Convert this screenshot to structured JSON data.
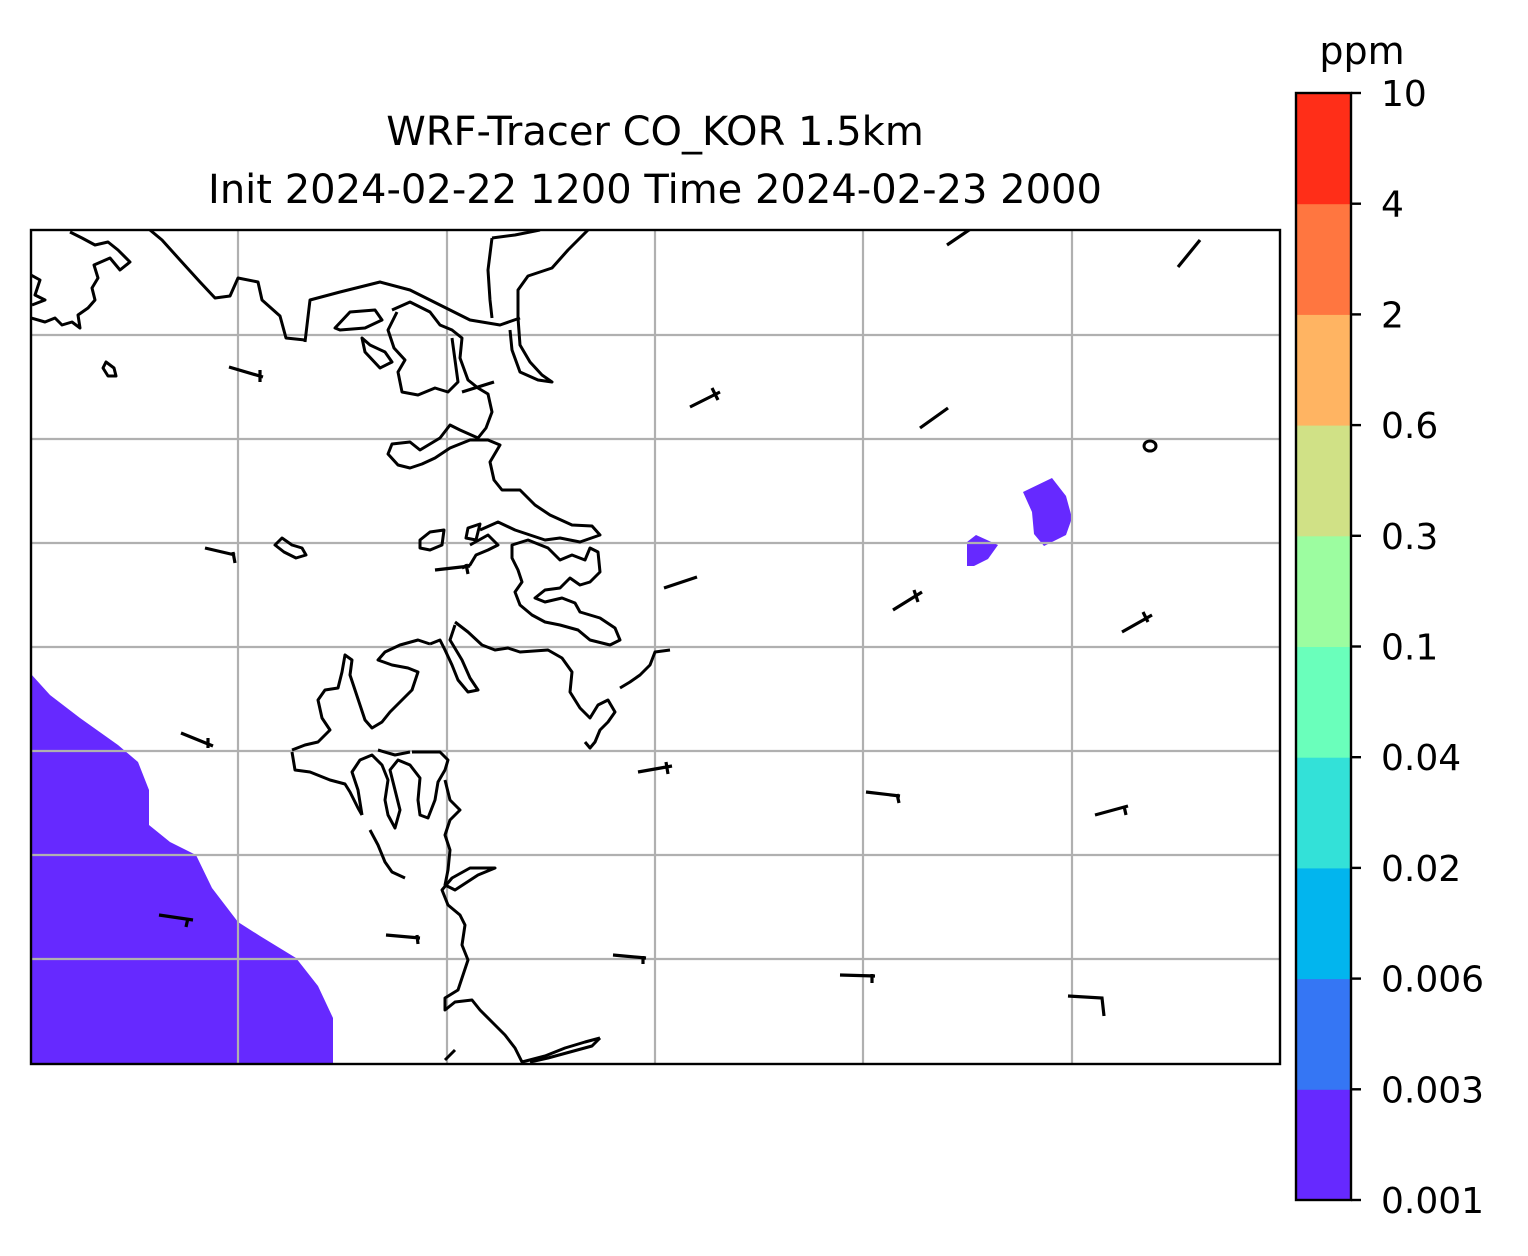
{
  "figure": {
    "title_line1": "WRF-Tracer CO_KOR 1.5km",
    "title_line2": "Init 2024-02-22 1200 Time 2024-02-23 2000"
  },
  "colorbar": {
    "unit": "ppm",
    "ticks": [
      "0.001",
      "0.003",
      "0.006",
      "0.02",
      "0.04",
      "0.1",
      "0.3",
      "0.6",
      "2",
      "4",
      "10"
    ],
    "colors": [
      "#6629ff",
      "#3576f4",
      "#02b5ee",
      "#33e1d8",
      "#6affbb",
      "#9cfda0",
      "#d0e186",
      "#ffb462",
      "#ff7640",
      "#ff2e18"
    ]
  },
  "map": {
    "fill_color": "#6629ff",
    "shaded_regions": [
      "southwest-sea-plume",
      "east-small-plume-a",
      "east-small-plume-b"
    ],
    "wind_barbs": 22,
    "grid": "on"
  }
}
